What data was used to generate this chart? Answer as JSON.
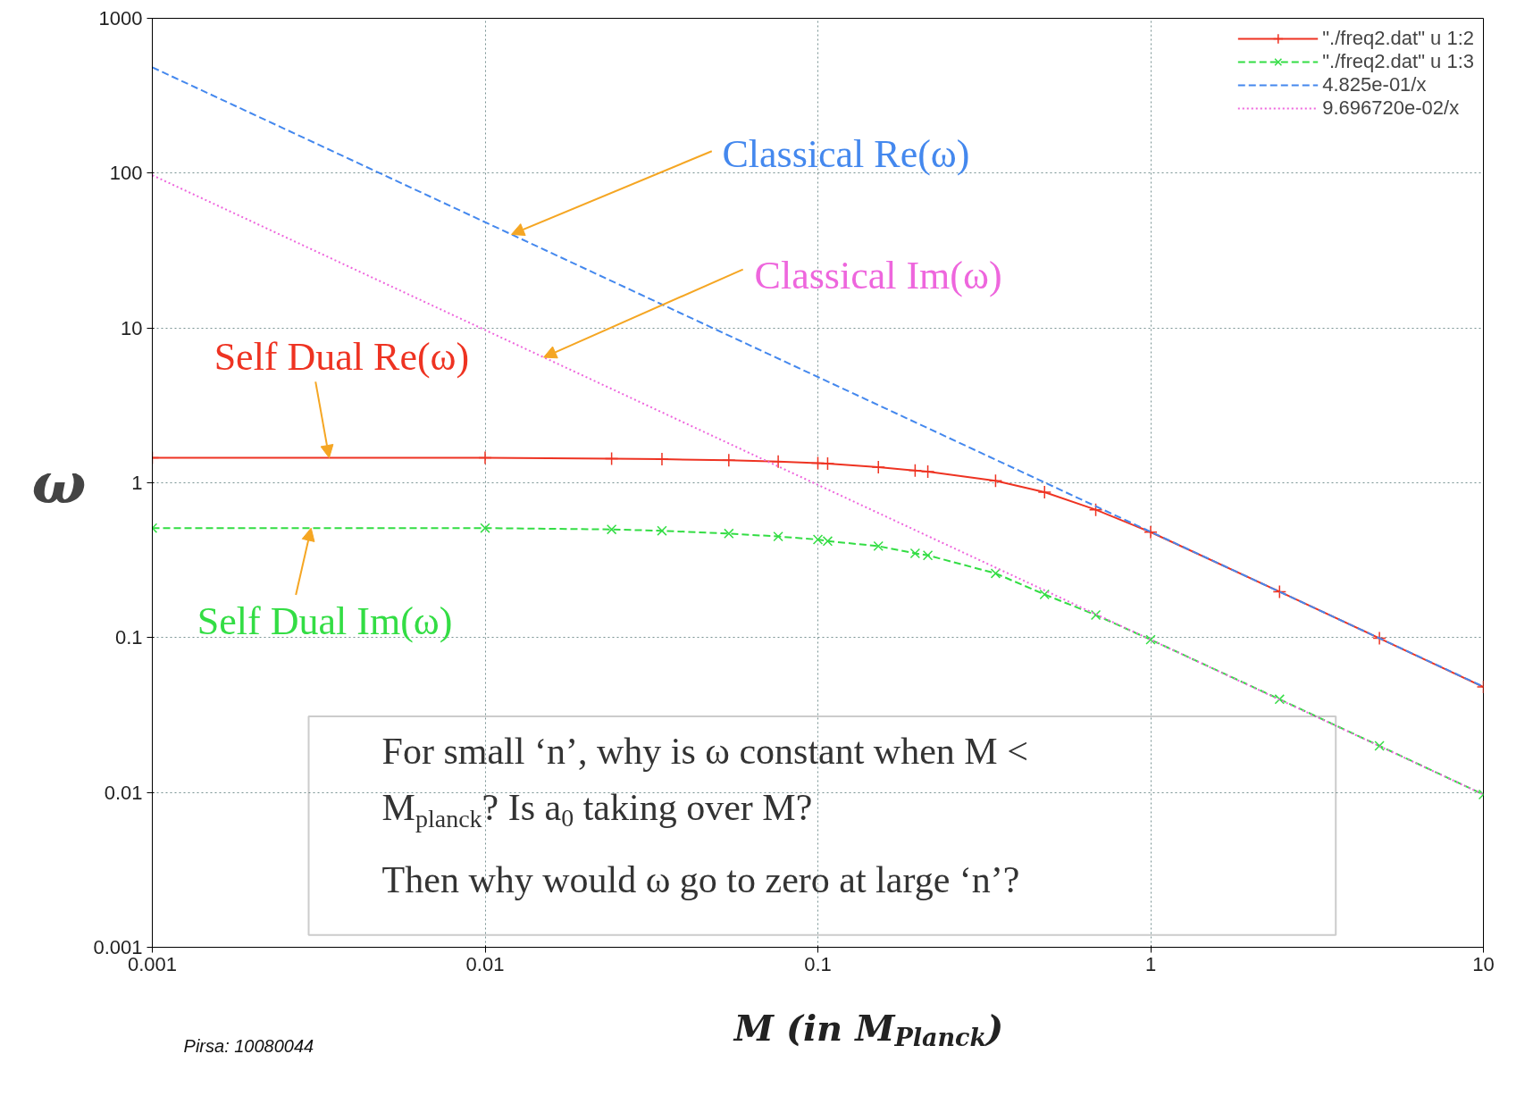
{
  "chart_data": {
    "type": "line",
    "xlabel": "M (in M$_{Planck}$)",
    "ylabel": "ω",
    "log": "xy",
    "grid": true,
    "legend": "top right",
    "xlim": [
      0.001,
      10
    ],
    "ylim": [
      0.001,
      1000
    ],
    "xticks": [
      0.001,
      0.01,
      0.1,
      1,
      10
    ],
    "yticks": [
      0.001,
      0.01,
      0.1,
      1,
      10,
      100,
      1000
    ],
    "series": [
      {
        "name": "\"./freq2.dat\" u 1:2",
        "color": "#ee3322",
        "marker": "cross",
        "line_style": "solid",
        "x": [
          0.001,
          0.01,
          0.024,
          0.034,
          0.054,
          0.076,
          0.1,
          0.107,
          0.152,
          0.196,
          0.214,
          0.342,
          0.48,
          0.684,
          1,
          2.44,
          4.87,
          10
        ],
        "values": [
          1.45,
          1.45,
          1.43,
          1.42,
          1.4,
          1.37,
          1.34,
          1.33,
          1.26,
          1.2,
          1.18,
          1.03,
          0.87,
          0.67,
          0.48,
          0.198,
          0.099,
          0.048
        ]
      },
      {
        "name": "\"./freq2.dat\" u 1:3",
        "color": "#33dd44",
        "marker": "x",
        "line_style": "dashed",
        "x": [
          0.001,
          0.01,
          0.024,
          0.034,
          0.054,
          0.076,
          0.1,
          0.107,
          0.152,
          0.196,
          0.214,
          0.342,
          0.48,
          0.684,
          1,
          2.44,
          4.87,
          10
        ],
        "values": [
          0.51,
          0.51,
          0.5,
          0.49,
          0.47,
          0.45,
          0.43,
          0.42,
          0.39,
          0.35,
          0.34,
          0.26,
          0.19,
          0.14,
          0.097,
          0.04,
          0.02,
          0.0097
        ]
      },
      {
        "name": "4.825e-01/x",
        "color": "#4488ee",
        "marker": "none",
        "line_style": "dashed",
        "x": [
          0.001,
          10
        ],
        "values": [
          482.5,
          0.04825
        ]
      },
      {
        "name": "9.696720e-02/x",
        "color": "#ee66dd",
        "marker": "none",
        "line_style": "dotted",
        "x": [
          0.001,
          10
        ],
        "values": [
          96.97,
          0.009697
        ]
      }
    ],
    "annotations": [
      {
        "text": "Self Dual Re(ω)",
        "x": 0.0034,
        "y": 1.45
      },
      {
        "text": "Self Dual Im(ω)",
        "x": 0.003,
        "y": 0.51
      },
      {
        "text": "Classical Re(ω)",
        "x": 0.012,
        "y": 40.2
      },
      {
        "text": "Classical Im(ω)",
        "x": 0.015,
        "y": 6.46
      },
      "For small ‘n’, why is ω constant when M < M$_{planck}$? Is a$_{0}$ taking over M?",
      "Then why would ω go to zero at large ‘n’?",
      "Pirsa: 10080044"
    ]
  }
}
